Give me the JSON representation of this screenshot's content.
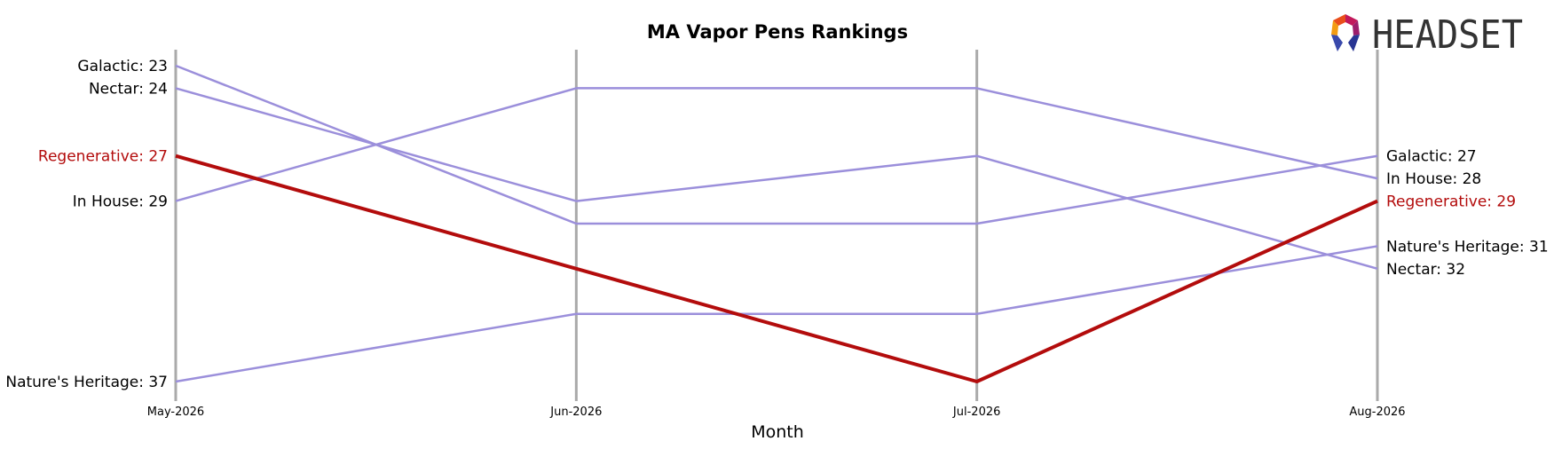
{
  "chart_data": {
    "type": "line",
    "title": "MA Vapor Pens Rankings",
    "xlabel": "Month",
    "ylabel": "",
    "x": [
      "May-2026",
      "Jun-2026",
      "Jul-2026",
      "Aug-2026"
    ],
    "y_inverted": true,
    "ylim": [
      37,
      23
    ],
    "grid": false,
    "series": [
      {
        "name": "Galactic",
        "values": [
          23,
          30,
          30,
          27
        ],
        "color": "#9b8fdb",
        "highlight": false
      },
      {
        "name": "Nectar",
        "values": [
          24,
          29,
          27,
          32
        ],
        "color": "#9b8fdb",
        "highlight": false
      },
      {
        "name": "In House",
        "values": [
          29,
          24,
          24,
          28
        ],
        "color": "#9b8fdb",
        "highlight": false
      },
      {
        "name": "Nature's Heritage",
        "values": [
          37,
          34,
          34,
          31
        ],
        "color": "#9b8fdb",
        "highlight": false
      },
      {
        "name": "Regenerative",
        "values": [
          27,
          32,
          37,
          29
        ],
        "color": "#b30c0c",
        "highlight": true
      }
    ],
    "start_labels": [
      {
        "text": "Galactic: 23",
        "rank": 23,
        "highlight": false
      },
      {
        "text": "Nectar: 24",
        "rank": 24,
        "highlight": false
      },
      {
        "text": "Regenerative: 27",
        "rank": 27,
        "highlight": true
      },
      {
        "text": "In House: 29",
        "rank": 29,
        "highlight": false
      },
      {
        "text": "Nature's Heritage: 37",
        "rank": 37,
        "highlight": false
      }
    ],
    "end_labels": [
      {
        "text": "Galactic: 27",
        "rank": 27,
        "highlight": false
      },
      {
        "text": "In House: 28",
        "rank": 28,
        "highlight": false
      },
      {
        "text": "Regenerative: 29",
        "rank": 29,
        "highlight": true
      },
      {
        "text": "Nature's Heritage: 31",
        "rank": 31,
        "highlight": false
      },
      {
        "text": "Nectar: 32",
        "rank": 32,
        "highlight": false
      }
    ]
  },
  "logo": {
    "text": "HEADSET"
  },
  "colors": {
    "axis": "#aaaaaa",
    "series": "#9b8fdb",
    "highlight": "#b30c0c",
    "text": "#000000"
  }
}
